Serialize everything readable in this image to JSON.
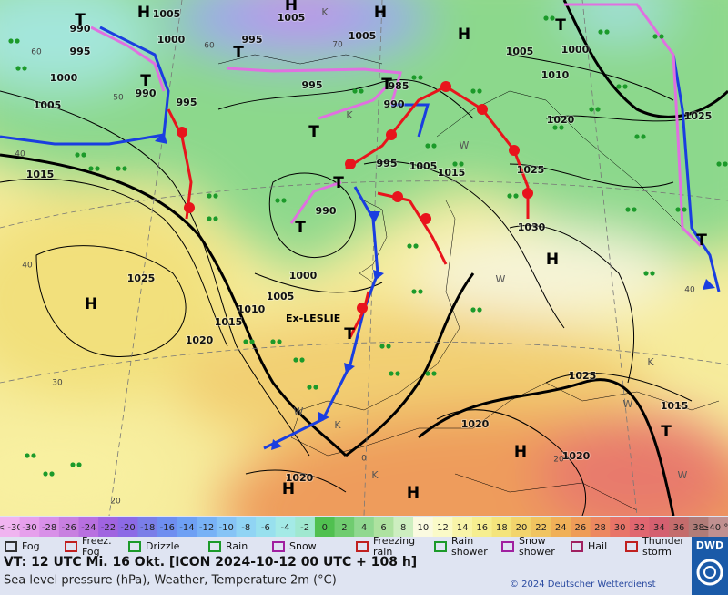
{
  "map": {
    "isobar_labels": [
      "1005",
      "1000",
      "990",
      "995",
      "1000",
      "1005",
      "990",
      "995",
      "1015",
      "1005",
      "995",
      "1005",
      "995",
      "990",
      "985",
      "995",
      "1005",
      "1015",
      "990",
      "1000",
      "1005",
      "1010",
      "1015",
      "1020",
      "1025",
      "1005",
      "1010",
      "1000",
      "1020",
      "1025",
      "1025",
      "1030",
      "1025",
      "1015",
      "1020",
      "1020",
      "1020"
    ],
    "pressure_centers": [
      "T",
      "H",
      "H",
      "H",
      "H",
      "T",
      "T",
      "T",
      "T",
      "T",
      "T",
      "H",
      "T",
      "H",
      "H",
      "H",
      "H",
      "T",
      "T",
      "T"
    ],
    "weather_letters": [
      "K",
      "K",
      "K",
      "K",
      "K",
      "W",
      "W",
      "W",
      "W",
      "W"
    ],
    "isotherm_labels": [
      "60",
      "60",
      "50",
      "40",
      "40",
      "30",
      "20",
      "0",
      "20",
      "40",
      "70"
    ],
    "storm_label": "Ex-LESLIE"
  },
  "scale": {
    "labels": [
      "< -30",
      -30,
      -28,
      -26,
      -24,
      -22,
      -20,
      -18,
      -16,
      -14,
      -12,
      -10,
      -8,
      -6,
      -4,
      -2,
      0,
      2,
      4,
      6,
      8,
      10,
      12,
      14,
      16,
      18,
      20,
      22,
      24,
      26,
      28,
      30,
      32,
      34,
      36,
      38,
      "≥40 °C"
    ],
    "colors": [
      "#f0b4f0",
      "#e6a0ec",
      "#d890e8",
      "#c880e0",
      "#b870e0",
      "#a064e0",
      "#8c6ae6",
      "#7a7ee8",
      "#6e8ef0",
      "#6ea0f4",
      "#78b2f6",
      "#86c4f6",
      "#90d4f4",
      "#98e0ee",
      "#a4eae6",
      "#a0e8d0",
      "#50c050",
      "#70cc70",
      "#90d890",
      "#aee2a0",
      "#cdeec0",
      "#fafae0",
      "#fafac8",
      "#f8f4a8",
      "#f6ee90",
      "#f4e47c",
      "#f2d46c",
      "#f0c460",
      "#f0b058",
      "#ee9c58",
      "#ec8860",
      "#e87468",
      "#e06670",
      "#d46070",
      "#c46c6c",
      "#b07c78",
      "#c09090"
    ]
  },
  "legend": [
    {
      "label": [
        "Fog"
      ]
    },
    {
      "label": [
        "Freez.",
        "Fog"
      ]
    },
    {
      "label": [
        "Drizzle"
      ]
    },
    {
      "label": [
        "Rain"
      ]
    },
    {
      "label": [
        "Snow"
      ]
    },
    {
      "label": [
        "Freezing",
        "rain"
      ]
    },
    {
      "label": [
        "Rain",
        "shower"
      ]
    },
    {
      "label": [
        "Snow",
        "shower"
      ]
    },
    {
      "label": [
        "Hail"
      ]
    },
    {
      "label": [
        "Thunder",
        "storm"
      ]
    }
  ],
  "footer": {
    "valid_time": "VT: 12 UTC Mi.  16 Okt. [ICON 2024-10-12  00 UTC + 108 h]",
    "description": "Sea level pressure (hPa), Weather, Temperature 2m (°C)",
    "copyright": "© 2024 Deutscher Wetterdienst",
    "logo": "DWD"
  }
}
